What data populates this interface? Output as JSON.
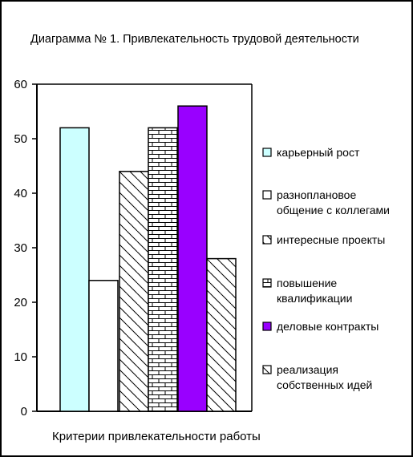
{
  "chart_data": {
    "type": "bar",
    "title": "Диаграмма № 1. Привлекательность трудовой деятельности",
    "xlabel": "Критерии привлекательности работы",
    "ylabel": "",
    "ylim": [
      0,
      60
    ],
    "yticks": [
      "0",
      "10",
      "20",
      "30",
      "40",
      "50",
      "60"
    ],
    "grid": false,
    "legend_position": "right",
    "categories": [
      ""
    ],
    "series": [
      {
        "name": "карьерный рост",
        "values": [
          52
        ],
        "color": "#ccffff",
        "pattern": "solid"
      },
      {
        "name": "разноплановое общение с коллегами",
        "values": [
          24
        ],
        "color": "#ffffff",
        "pattern": "solid"
      },
      {
        "name": "интересные проекты",
        "values": [
          44
        ],
        "color": "#ffffff",
        "pattern": "diagonal"
      },
      {
        "name": "повышение квалификации",
        "values": [
          52
        ],
        "color": "#ffffff",
        "pattern": "brick"
      },
      {
        "name": "деловые контракты",
        "values": [
          56
        ],
        "color": "#9900ff",
        "pattern": "solid"
      },
      {
        "name": "реализация собственных идей",
        "values": [
          28
        ],
        "color": "#ffffff",
        "pattern": "diagonal"
      }
    ]
  }
}
